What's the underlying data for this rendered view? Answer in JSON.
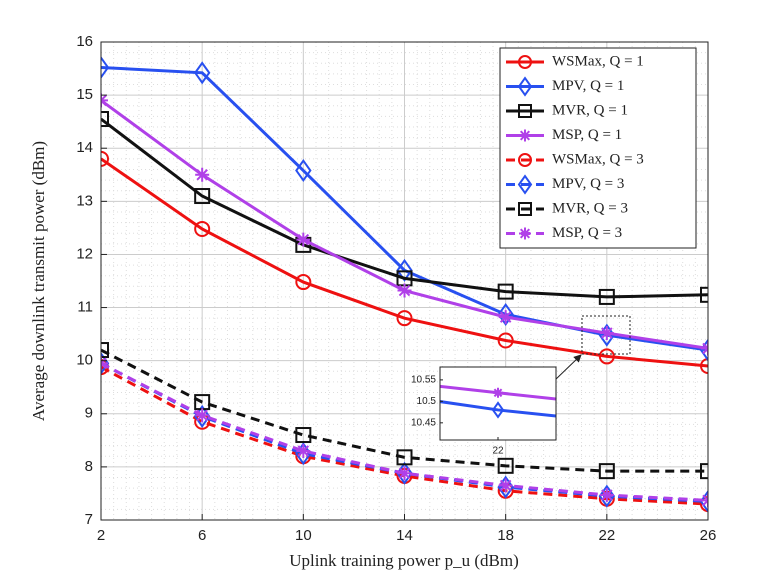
{
  "chart_data": {
    "type": "line",
    "xlabel": "Uplink training power p_u (dBm)",
    "ylabel": "Average downlink transmit power (dBm)",
    "x": [
      2,
      6,
      10,
      14,
      18,
      22,
      26
    ],
    "xlim": [
      2,
      26
    ],
    "xticks": [
      2,
      6,
      10,
      14,
      18,
      22,
      26
    ],
    "ylim": [
      7,
      16
    ],
    "yticks": [
      7,
      8,
      9,
      10,
      11,
      12,
      13,
      14,
      15,
      16
    ],
    "grid": true,
    "minor_grid": true,
    "legend": "upper right",
    "series": [
      {
        "name": "WSMax, Q = 1",
        "color": "#ee1111",
        "marker": "circle",
        "linestyle": "solid",
        "values": [
          13.8,
          12.48,
          11.48,
          10.8,
          10.38,
          10.08,
          9.9
        ]
      },
      {
        "name": "MPV, Q = 1",
        "color": "#2850f0",
        "marker": "diamond",
        "linestyle": "solid",
        "values": [
          15.52,
          15.42,
          13.58,
          11.7,
          10.87,
          10.48,
          10.2
        ]
      },
      {
        "name": "MVR, Q = 1",
        "color": "#111111",
        "marker": "square",
        "linestyle": "solid",
        "values": [
          14.55,
          13.1,
          12.18,
          11.55,
          11.3,
          11.2,
          11.24
        ]
      },
      {
        "name": "MSP, Q = 1",
        "color": "#b040e8",
        "marker": "asterisk",
        "linestyle": "solid",
        "values": [
          14.9,
          13.5,
          12.28,
          11.32,
          10.82,
          10.52,
          10.23
        ]
      },
      {
        "name": "WSMax, Q = 3",
        "color": "#ee1111",
        "marker": "circle",
        "linestyle": "dashed",
        "values": [
          9.88,
          8.85,
          8.2,
          7.83,
          7.55,
          7.4,
          7.3
        ]
      },
      {
        "name": "MPV, Q = 3",
        "color": "#2850f0",
        "marker": "diamond",
        "linestyle": "dashed",
        "values": [
          9.95,
          8.95,
          8.25,
          7.88,
          7.62,
          7.45,
          7.35
        ]
      },
      {
        "name": "MVR, Q = 3",
        "color": "#111111",
        "marker": "square",
        "linestyle": "dashed",
        "values": [
          10.2,
          9.22,
          8.6,
          8.18,
          8.02,
          7.92,
          7.92
        ]
      },
      {
        "name": "MSP, Q = 3",
        "color": "#b040e8",
        "marker": "asterisk",
        "linestyle": "dashed",
        "values": [
          9.95,
          8.97,
          8.3,
          7.88,
          7.65,
          7.47,
          7.37
        ]
      }
    ],
    "inset": {
      "xlim": [
        21.8,
        22.2
      ],
      "ylim": [
        10.41,
        10.58
      ],
      "xticks": [
        22
      ],
      "yticks": [
        10.45,
        10.5,
        10.55
      ],
      "series_shown": [
        1,
        3
      ]
    }
  }
}
